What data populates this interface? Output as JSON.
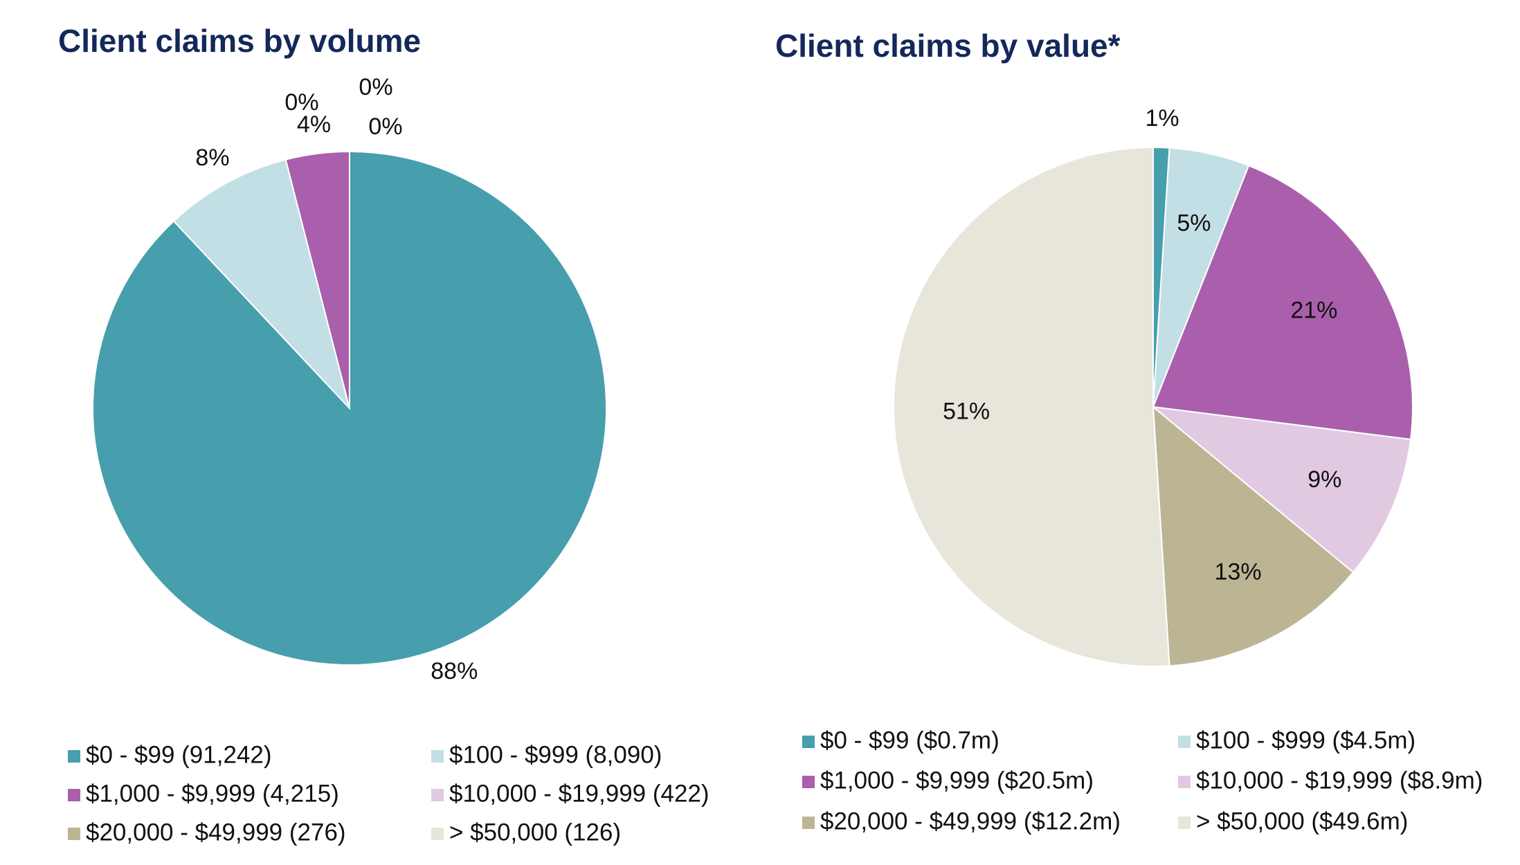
{
  "chart_data": [
    {
      "type": "pie",
      "title": "Client claims by volume",
      "categories": [
        "$0 - $99 (91,242)",
        "$100 - $999 (8,090)",
        "$1,000 - $9,999 (4,215)",
        "$10,000 - $19,999 (422)",
        "$20,000 - $49,999 (276)",
        "> $50,000 (126)"
      ],
      "values": [
        88,
        8,
        4,
        0,
        0,
        0
      ],
      "value_labels": [
        "88%",
        "8%",
        "4%",
        "0%",
        "0%",
        "0%"
      ],
      "colors": [
        "#479ead",
        "#c2dfe5",
        "#aa5fac",
        "#e2c9e2",
        "#bcb594",
        "#e8e6db"
      ]
    },
    {
      "type": "pie",
      "title": "Client claims by value*",
      "categories": [
        "$0 - $99 ($0.7m)",
        "$100 - $999 ($4.5m)",
        "$1,000 - $9,999 ($20.5m)",
        "$10,000 - $19,999 ($8.9m)",
        "$20,000 - $49,999 ($12.2m)",
        "> $50,000 ($49.6m)"
      ],
      "values": [
        1,
        5,
        21,
        9,
        13,
        51
      ],
      "value_labels": [
        "1%",
        "5%",
        "21%",
        "9%",
        "13%",
        "51%"
      ],
      "colors": [
        "#479ead",
        "#c2dfe5",
        "#aa5fac",
        "#e2c9e2",
        "#bcb594",
        "#e8e6db"
      ]
    }
  ]
}
